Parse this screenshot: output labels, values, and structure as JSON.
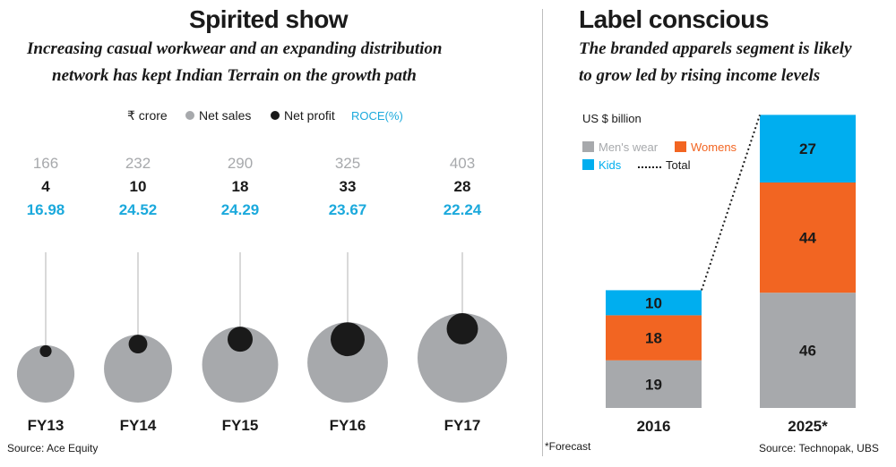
{
  "left": {
    "title": "Spirited show",
    "subtitle_lines": [
      "Increasing casual workwear and an expanding distribution",
      "network has kept Indian Terrain on the growth path"
    ],
    "source": "Source: Ace Equity"
  },
  "right": {
    "title": "Label conscious",
    "subtitle_lines": [
      "The branded apparels segment is likely",
      "to grow led by rising income levels"
    ],
    "footnote": "*Forecast",
    "source": "Source: Technopak, UBS"
  },
  "colors": {
    "net_sales": "#a7a9ac",
    "net_profit": "#1a1a1a",
    "roce": "#1ba9dc",
    "mens": "#a7a9ac",
    "womens": "#f26522",
    "kids": "#00aeef",
    "text": "#1a1a1a",
    "stem": "#b3b3b3"
  },
  "chart_data": [
    {
      "type": "scatter",
      "legend": {
        "unit": "₹ crore",
        "items": [
          "Net sales",
          "Net profit",
          "ROCE(%)"
        ]
      },
      "categories": [
        "FY13",
        "FY14",
        "FY15",
        "FY16",
        "FY17"
      ],
      "series": [
        {
          "name": "Net sales",
          "values": [
            166,
            232,
            290,
            325,
            403
          ]
        },
        {
          "name": "Net profit",
          "values": [
            4,
            10,
            18,
            33,
            28
          ]
        },
        {
          "name": "ROCE(%)",
          "values": [
            "16.98",
            "24.52",
            "24.29",
            "23.67",
            "22.24"
          ]
        }
      ]
    },
    {
      "type": "bar",
      "stacked": true,
      "unit_label": "US $ billion",
      "categories": [
        "2016",
        "2025*"
      ],
      "series": [
        {
          "name": "Men's wear",
          "values": [
            19,
            46
          ]
        },
        {
          "name": "Womens",
          "values": [
            18,
            44
          ]
        },
        {
          "name": "Kids",
          "values": [
            10,
            27
          ]
        }
      ],
      "total_label": "Total"
    }
  ]
}
